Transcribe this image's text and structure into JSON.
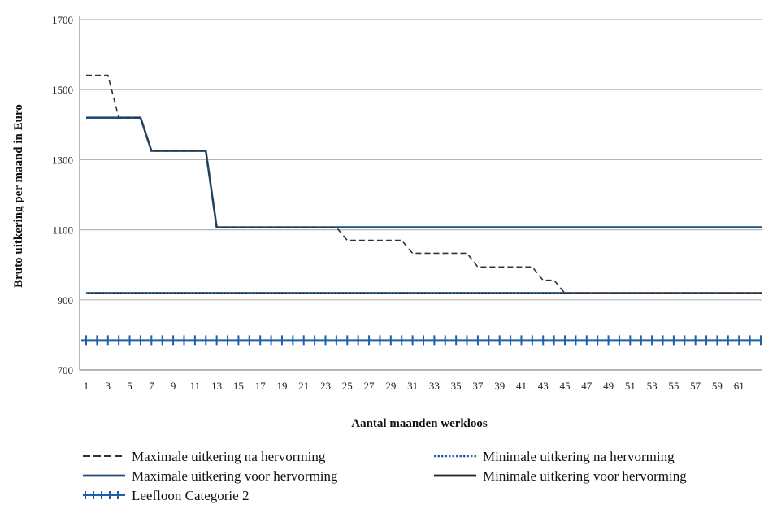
{
  "chart_data": {
    "type": "line",
    "xlabel": "Aantal maanden werkloos",
    "ylabel": "Bruto uitkering per maand in Euro",
    "ylim": [
      700,
      1700
    ],
    "yticks": [
      700,
      900,
      1100,
      1300,
      1500,
      1700
    ],
    "x": [
      1,
      2,
      3,
      4,
      5,
      6,
      7,
      8,
      9,
      10,
      11,
      12,
      13,
      14,
      15,
      16,
      17,
      18,
      19,
      20,
      21,
      22,
      23,
      24,
      25,
      26,
      27,
      28,
      29,
      30,
      31,
      32,
      33,
      34,
      35,
      36,
      37,
      38,
      39,
      40,
      41,
      42,
      43,
      44,
      45,
      46,
      47,
      48,
      49,
      50,
      51,
      52,
      53,
      54,
      55,
      56,
      57,
      58,
      59,
      60,
      61,
      62,
      63
    ],
    "xtick_labels": [
      "1",
      "3",
      "5",
      "7",
      "9",
      "11",
      "13",
      "15",
      "17",
      "19",
      "21",
      "23",
      "25",
      "27",
      "29",
      "31",
      "33",
      "35",
      "37",
      "39",
      "41",
      "43",
      "45",
      "47",
      "49",
      "51",
      "53",
      "55",
      "57",
      "59",
      "61"
    ],
    "grid": "horizontal",
    "legend_position": "bottom",
    "series": [
      {
        "name": "Maximale uitkering na hervorming",
        "color": "#333333",
        "style": "dashed",
        "values": [
          1541,
          1541,
          1541,
          1420,
          1420,
          1420,
          1325,
          1325,
          1325,
          1325,
          1325,
          1325,
          1107,
          1107,
          1107,
          1107,
          1107,
          1107,
          1107,
          1107,
          1107,
          1107,
          1107,
          1107,
          1070,
          1070,
          1070,
          1070,
          1070,
          1070,
          1033,
          1033,
          1033,
          1033,
          1033,
          1033,
          994,
          994,
          994,
          994,
          994,
          994,
          956,
          956,
          919,
          919,
          919,
          919,
          919,
          919,
          919,
          919,
          919,
          919,
          919,
          919,
          919,
          919,
          919,
          919,
          919,
          919,
          919
        ]
      },
      {
        "name": "Minimale uitkering na hervorming",
        "color": "#1f5fa8",
        "style": "dotted",
        "values": [
          919,
          919,
          919,
          919,
          919,
          919,
          919,
          919,
          919,
          919,
          919,
          919,
          919,
          919,
          919,
          919,
          919,
          919,
          919,
          919,
          919,
          919,
          919,
          919,
          919,
          919,
          919,
          919,
          919,
          919,
          919,
          919,
          919,
          919,
          919,
          919,
          919,
          919,
          919,
          919,
          919,
          919,
          919,
          919,
          919,
          919,
          919,
          919,
          919,
          919,
          919,
          919,
          919,
          919,
          919,
          919,
          919,
          919,
          919,
          919,
          919,
          919,
          919
        ]
      },
      {
        "name": "Maximale uitkering voor hervorming",
        "color": "#1f4e79",
        "style": "solid",
        "values": [
          1420,
          1420,
          1420,
          1420,
          1420,
          1420,
          1325,
          1325,
          1325,
          1325,
          1325,
          1325,
          1107,
          1107,
          1107,
          1107,
          1107,
          1107,
          1107,
          1107,
          1107,
          1107,
          1107,
          1107,
          1107,
          1107,
          1107,
          1107,
          1107,
          1107,
          1107,
          1107,
          1107,
          1107,
          1107,
          1107,
          1107,
          1107,
          1107,
          1107,
          1107,
          1107,
          1107,
          1107,
          1107,
          1107,
          1107,
          1107,
          1107,
          1107,
          1107,
          1107,
          1107,
          1107,
          1107,
          1107,
          1107,
          1107,
          1107,
          1107,
          1107,
          1107,
          1107
        ]
      },
      {
        "name": "Minimale uitkering voor hervorming",
        "color": "#222222",
        "style": "solid",
        "values": [
          919,
          919,
          919,
          919,
          919,
          919,
          919,
          919,
          919,
          919,
          919,
          919,
          919,
          919,
          919,
          919,
          919,
          919,
          919,
          919,
          919,
          919,
          919,
          919,
          919,
          919,
          919,
          919,
          919,
          919,
          919,
          919,
          919,
          919,
          919,
          919,
          919,
          919,
          919,
          919,
          919,
          919,
          919,
          919,
          919,
          919,
          919,
          919,
          919,
          919,
          919,
          919,
          919,
          919,
          919,
          919,
          919,
          919,
          919,
          919,
          919,
          919,
          919
        ]
      },
      {
        "name": "Leefloon Categorie 2",
        "color": "#1f5fa8",
        "style": "plus-markers",
        "values": [
          785,
          785,
          785,
          785,
          785,
          785,
          785,
          785,
          785,
          785,
          785,
          785,
          785,
          785,
          785,
          785,
          785,
          785,
          785,
          785,
          785,
          785,
          785,
          785,
          785,
          785,
          785,
          785,
          785,
          785,
          785,
          785,
          785,
          785,
          785,
          785,
          785,
          785,
          785,
          785,
          785,
          785,
          785,
          785,
          785,
          785,
          785,
          785,
          785,
          785,
          785,
          785,
          785,
          785,
          785,
          785,
          785,
          785,
          785,
          785,
          785,
          785,
          785
        ]
      }
    ]
  }
}
